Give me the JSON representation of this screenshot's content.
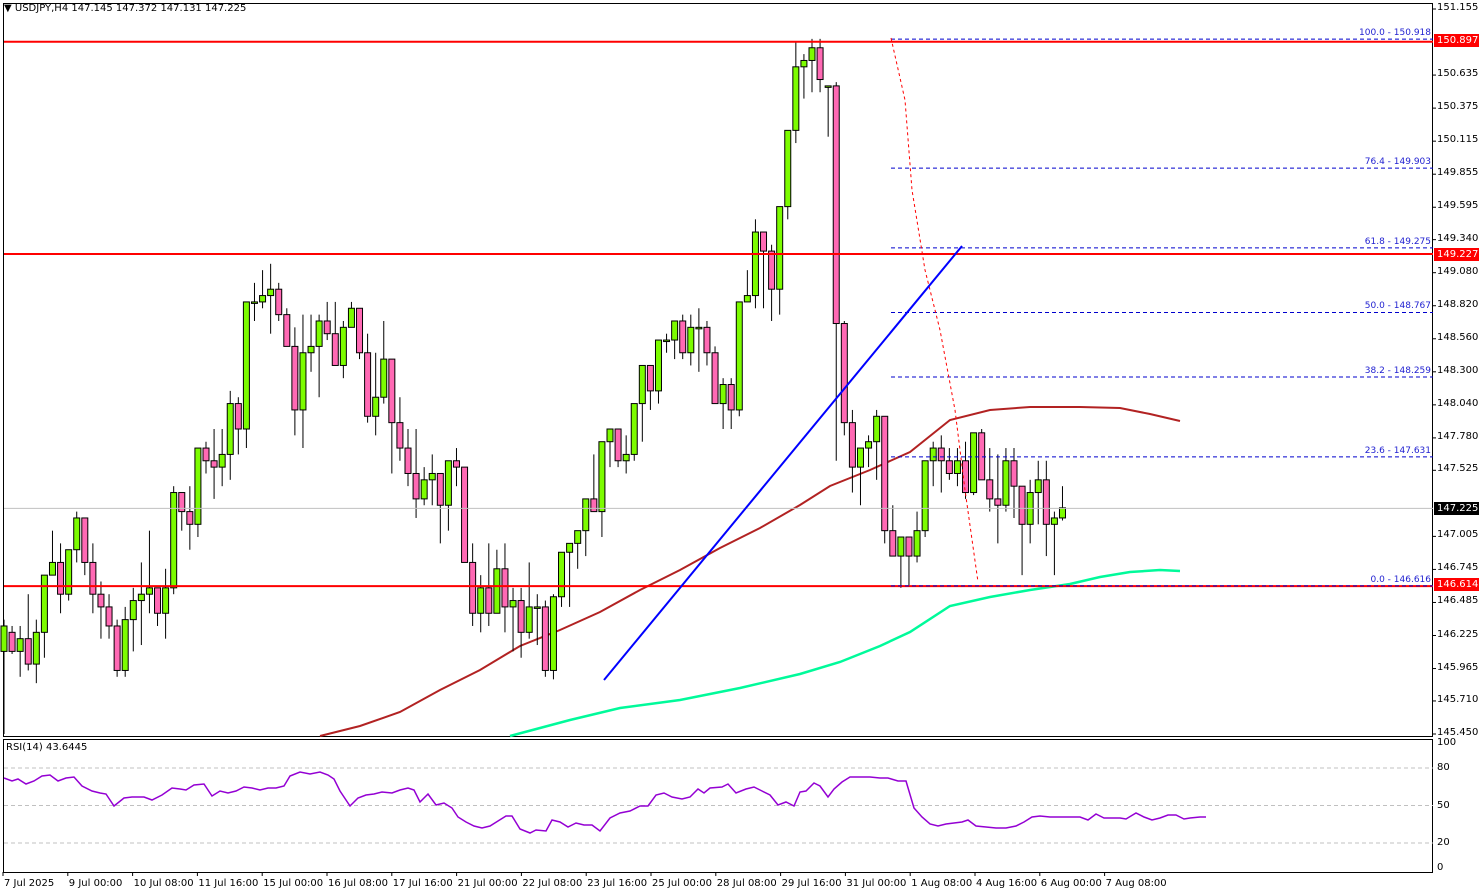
{
  "header": {
    "symbol": "USDJPY,H4",
    "ohlc": "147.145 147.372 147.131 147.225",
    "dropdown_icon": "triangle-down-icon"
  },
  "rsi": {
    "label": "RSI(14) 43.6445",
    "levels": [
      "100",
      "80",
      "50",
      "20",
      "0"
    ]
  },
  "price_axis": [
    "151.155",
    "150.635",
    "150.375",
    "150.115",
    "149.855",
    "149.595",
    "149.340",
    "149.080",
    "148.820",
    "148.560",
    "148.300",
    "148.040",
    "147.780",
    "147.525",
    "147.005",
    "146.745",
    "146.485",
    "146.225",
    "145.965",
    "145.710",
    "145.450"
  ],
  "price_boxes": {
    "r1": "150.897",
    "r2": "149.227",
    "current": "147.225",
    "s1": "146.614"
  },
  "fib_labels": {
    "f100": "100.0 - 150.918",
    "f764": "76.4 - 149.903",
    "f618": "61.8 - 149.275",
    "f500": "50.0 - 148.767",
    "f382": "38.2 - 148.259",
    "f236": "23.6 - 147.631",
    "f000": "0.0 - 146.616"
  },
  "time_axis": [
    "7 Jul 2025",
    "9 Jul 00:00",
    "10 Jul 08:00",
    "11 Jul 16:00",
    "15 Jul 00:00",
    "16 Jul 08:00",
    "17 Jul 16:00",
    "21 Jul 00:00",
    "22 Jul 08:00",
    "23 Jul 16:00",
    "25 Jul 00:00",
    "28 Jul 08:00",
    "29 Jul 16:00",
    "31 Jul 00:00",
    "1 Aug 08:00",
    "4 Aug 16:00",
    "6 Aug 00:00",
    "7 Aug 08:00"
  ],
  "colors": {
    "bull": "#7cfc00",
    "bear": "#ff69b4",
    "resistance": "#ff0000",
    "trendline": "#0000ff",
    "fib": "#0000cd",
    "ma_fast": "#b22222",
    "ma_slow": "#00fa9a",
    "rsi": "#9400d3"
  },
  "chart_data": {
    "type": "candlestick",
    "title": "USDJPY,H4",
    "ylim": [
      145.45,
      151.155
    ],
    "candles": [
      [
        146.1,
        146.35,
        145.45,
        146.3
      ],
      [
        146.25,
        146.3,
        146.08,
        146.1
      ],
      [
        146.1,
        146.3,
        145.9,
        146.2
      ],
      [
        146.2,
        146.55,
        145.95,
        146.0
      ],
      [
        146.0,
        146.35,
        145.85,
        146.25
      ],
      [
        146.25,
        146.7,
        146.05,
        146.7
      ],
      [
        146.7,
        147.05,
        146.7,
        146.8
      ],
      [
        146.8,
        146.95,
        146.4,
        146.55
      ],
      [
        146.55,
        146.9,
        146.5,
        146.9
      ],
      [
        146.9,
        147.2,
        146.8,
        147.15
      ],
      [
        147.15,
        147.15,
        146.7,
        146.8
      ],
      [
        146.8,
        146.95,
        146.4,
        146.55
      ],
      [
        146.55,
        146.65,
        146.2,
        146.45
      ],
      [
        146.45,
        146.55,
        146.2,
        146.3
      ],
      [
        146.3,
        146.35,
        145.9,
        145.95
      ],
      [
        145.95,
        146.45,
        145.9,
        146.35
      ],
      [
        146.35,
        146.6,
        146.1,
        146.5
      ],
      [
        146.5,
        146.8,
        146.15,
        146.55
      ],
      [
        146.55,
        147.05,
        146.4,
        146.6
      ],
      [
        146.6,
        146.6,
        146.3,
        146.4
      ],
      [
        146.4,
        146.75,
        146.2,
        146.6
      ],
      [
        146.6,
        147.4,
        146.55,
        147.35
      ],
      [
        147.35,
        147.35,
        147.05,
        147.2
      ],
      [
        147.2,
        147.4,
        146.9,
        147.1
      ],
      [
        147.1,
        147.65,
        147.0,
        147.7
      ],
      [
        147.7,
        147.75,
        147.5,
        147.6
      ],
      [
        147.6,
        147.85,
        147.3,
        147.55
      ],
      [
        147.55,
        147.85,
        147.4,
        147.65
      ],
      [
        147.65,
        148.15,
        147.45,
        148.05
      ],
      [
        148.05,
        148.1,
        147.65,
        147.85
      ],
      [
        147.85,
        148.8,
        147.7,
        148.85
      ],
      [
        148.85,
        149.0,
        148.7,
        148.85
      ],
      [
        148.85,
        149.1,
        148.8,
        148.9
      ],
      [
        148.9,
        149.15,
        148.6,
        148.95
      ],
      [
        148.95,
        149.0,
        148.7,
        148.75
      ],
      [
        148.75,
        148.8,
        148.5,
        148.5
      ],
      [
        148.5,
        148.65,
        147.8,
        148.0
      ],
      [
        148.0,
        148.75,
        147.7,
        148.45
      ],
      [
        148.45,
        148.75,
        148.3,
        148.5
      ],
      [
        148.5,
        148.75,
        148.1,
        148.7
      ],
      [
        148.7,
        148.85,
        148.55,
        148.6
      ],
      [
        148.6,
        148.85,
        148.35,
        148.35
      ],
      [
        148.35,
        148.7,
        148.25,
        148.65
      ],
      [
        148.65,
        148.85,
        148.65,
        148.8
      ],
      [
        148.8,
        148.8,
        148.4,
        148.45
      ],
      [
        148.45,
        148.6,
        147.9,
        147.95
      ],
      [
        147.95,
        148.45,
        147.8,
        148.1
      ],
      [
        148.1,
        148.7,
        148.05,
        148.4
      ],
      [
        148.4,
        148.4,
        147.5,
        147.9
      ],
      [
        147.9,
        148.1,
        147.6,
        147.7
      ],
      [
        147.7,
        147.85,
        147.4,
        147.5
      ],
      [
        147.5,
        147.85,
        147.15,
        147.3
      ],
      [
        147.3,
        147.55,
        147.25,
        147.45
      ],
      [
        147.45,
        147.65,
        147.25,
        147.5
      ],
      [
        147.5,
        147.5,
        146.95,
        147.25
      ],
      [
        147.25,
        147.6,
        147.05,
        147.6
      ],
      [
        147.6,
        147.7,
        147.4,
        147.55
      ],
      [
        147.55,
        147.55,
        146.85,
        146.8
      ],
      [
        146.8,
        146.95,
        146.3,
        146.4
      ],
      [
        146.4,
        146.7,
        146.25,
        146.6
      ],
      [
        146.6,
        146.95,
        146.3,
        146.4
      ],
      [
        146.4,
        146.9,
        146.4,
        146.75
      ],
      [
        146.75,
        146.95,
        146.25,
        146.45
      ],
      [
        146.45,
        146.6,
        146.1,
        146.5
      ],
      [
        146.5,
        146.6,
        146.05,
        146.25
      ],
      [
        146.25,
        146.8,
        146.2,
        146.45
      ],
      [
        146.45,
        146.55,
        146.15,
        146.45
      ],
      [
        146.45,
        146.5,
        145.9,
        145.95
      ],
      [
        145.95,
        146.55,
        145.88,
        146.53
      ],
      [
        146.53,
        146.8,
        146.45,
        146.88
      ],
      [
        146.88,
        146.95,
        146.45,
        146.95
      ],
      [
        146.95,
        147.05,
        146.75,
        147.05
      ],
      [
        147.05,
        147.3,
        146.85,
        147.3
      ],
      [
        147.3,
        147.65,
        147.2,
        147.2
      ],
      [
        147.2,
        147.75,
        147.0,
        147.75
      ],
      [
        147.75,
        147.85,
        147.55,
        147.85
      ],
      [
        147.85,
        147.85,
        147.55,
        147.6
      ],
      [
        147.6,
        147.8,
        147.5,
        147.65
      ],
      [
        147.65,
        148.05,
        147.6,
        148.05
      ],
      [
        148.05,
        148.3,
        147.75,
        148.35
      ],
      [
        148.35,
        148.35,
        148.0,
        148.15
      ],
      [
        148.15,
        148.55,
        148.05,
        148.55
      ],
      [
        148.55,
        148.6,
        148.45,
        148.55
      ],
      [
        148.55,
        148.7,
        148.4,
        148.7
      ],
      [
        148.7,
        148.75,
        148.4,
        148.45
      ],
      [
        148.45,
        148.75,
        148.35,
        148.65
      ],
      [
        148.65,
        148.8,
        148.3,
        148.65
      ],
      [
        148.65,
        148.7,
        148.35,
        148.45
      ],
      [
        148.45,
        148.5,
        148.1,
        148.05
      ],
      [
        148.05,
        148.25,
        147.85,
        148.2
      ],
      [
        148.2,
        148.25,
        147.85,
        148.0
      ],
      [
        148.0,
        148.85,
        147.95,
        148.85
      ],
      [
        148.85,
        149.1,
        148.85,
        148.9
      ],
      [
        148.9,
        149.5,
        148.8,
        149.4
      ],
      [
        149.4,
        149.4,
        148.8,
        149.25
      ],
      [
        149.25,
        149.3,
        148.7,
        148.95
      ],
      [
        148.95,
        149.6,
        148.75,
        149.6
      ],
      [
        149.6,
        150.2,
        149.5,
        150.2
      ],
      [
        150.2,
        150.9,
        150.1,
        150.7
      ],
      [
        150.7,
        150.8,
        150.45,
        150.75
      ],
      [
        150.75,
        150.92,
        150.5,
        150.85
      ],
      [
        150.85,
        150.92,
        150.5,
        150.6
      ],
      [
        150.55,
        150.55,
        150.15,
        150.55
      ],
      [
        150.55,
        150.58,
        147.6,
        148.68
      ],
      [
        148.68,
        148.7,
        147.8,
        147.9
      ],
      [
        147.9,
        148.0,
        147.35,
        147.55
      ],
      [
        147.55,
        147.7,
        147.25,
        147.7
      ],
      [
        147.7,
        147.8,
        147.55,
        147.75
      ],
      [
        147.75,
        148.0,
        147.45,
        147.95
      ],
      [
        147.95,
        147.95,
        146.95,
        147.05
      ],
      [
        147.05,
        147.25,
        146.85,
        146.85
      ],
      [
        146.85,
        147.0,
        146.6,
        147.0
      ],
      [
        147.0,
        147.0,
        146.62,
        146.85
      ],
      [
        146.85,
        147.2,
        146.8,
        147.05
      ],
      [
        147.05,
        147.5,
        147.0,
        147.6
      ],
      [
        147.6,
        147.75,
        147.4,
        147.7
      ],
      [
        147.7,
        147.8,
        147.35,
        147.6
      ],
      [
        147.6,
        147.7,
        147.45,
        147.5
      ],
      [
        147.5,
        147.7,
        147.4,
        147.6
      ],
      [
        147.6,
        147.75,
        147.3,
        147.35
      ],
      [
        147.35,
        147.8,
        147.33,
        147.82
      ],
      [
        147.82,
        147.85,
        147.45,
        147.45
      ],
      [
        147.45,
        147.7,
        147.2,
        147.3
      ],
      [
        147.3,
        147.65,
        146.95,
        147.25
      ],
      [
        147.25,
        147.7,
        147.2,
        147.6
      ],
      [
        147.6,
        147.7,
        147.15,
        147.4
      ],
      [
        147.4,
        147.4,
        146.7,
        147.1
      ],
      [
        147.1,
        147.45,
        146.95,
        147.35
      ],
      [
        147.35,
        147.6,
        147.1,
        147.45
      ],
      [
        147.45,
        147.6,
        146.85,
        147.1
      ],
      [
        147.1,
        147.2,
        146.7,
        147.15
      ],
      [
        147.15,
        147.4,
        147.13,
        147.23
      ]
    ],
    "overlays": {
      "horizontal_lines": [
        150.897,
        149.227,
        146.614
      ],
      "fibonacci": {
        "100": 150.918,
        "76.4": 149.903,
        "61.8": 149.275,
        "50.0": 148.767,
        "38.2": 148.259,
        "23.6": 147.631,
        "0.0": 146.616
      },
      "trendline": [
        [
          604,
          680
        ],
        [
          962,
          246
        ]
      ]
    },
    "indicator": {
      "name": "RSI(14)",
      "last": 43.6445,
      "levels": [
        80,
        50,
        20
      ],
      "ylim": [
        0,
        100
      ]
    }
  }
}
